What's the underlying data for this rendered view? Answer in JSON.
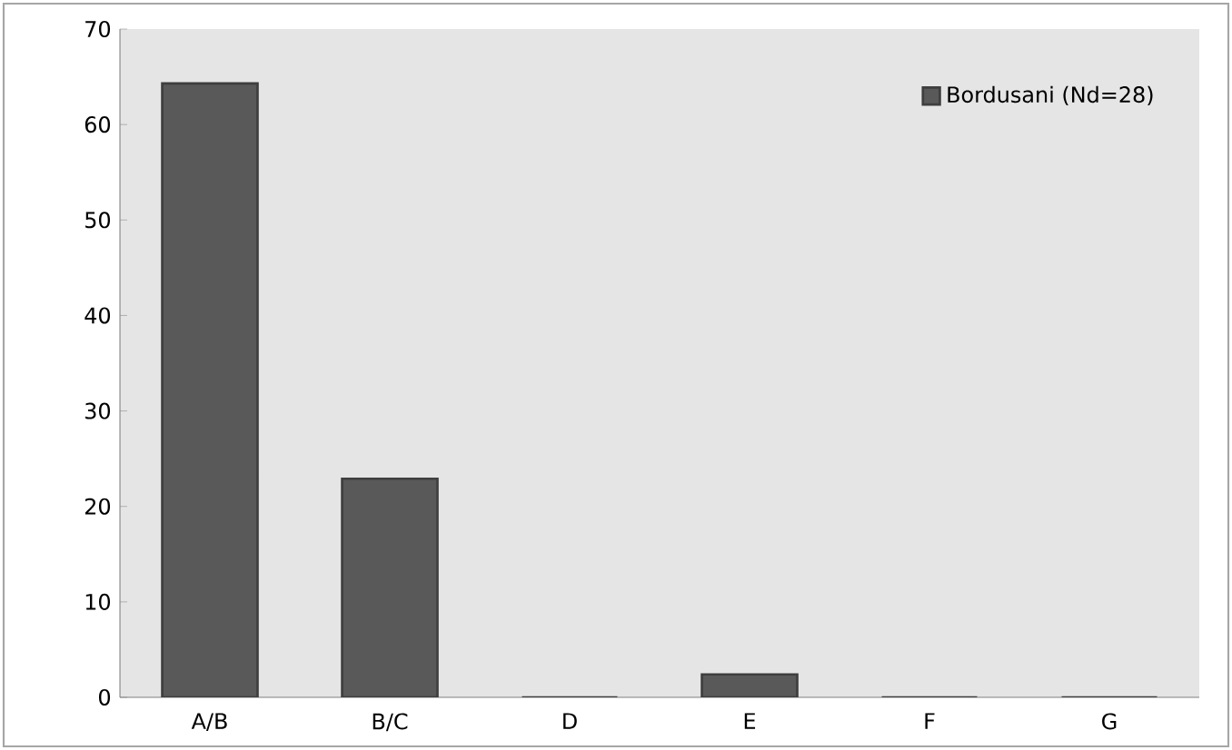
{
  "chart_data": {
    "type": "bar",
    "categories": [
      "A/B",
      "B/C",
      "D",
      "E",
      "F",
      "G"
    ],
    "series": [
      {
        "name": "Bordusani (Nd=28)",
        "color": "#595959",
        "values": [
          64.3,
          22.9,
          0,
          2.4,
          0,
          0
        ]
      }
    ],
    "ylim": [
      0,
      70
    ],
    "yticks": [
      0,
      10,
      20,
      30,
      40,
      50,
      60,
      70
    ],
    "grid": false,
    "legend": "top right"
  }
}
